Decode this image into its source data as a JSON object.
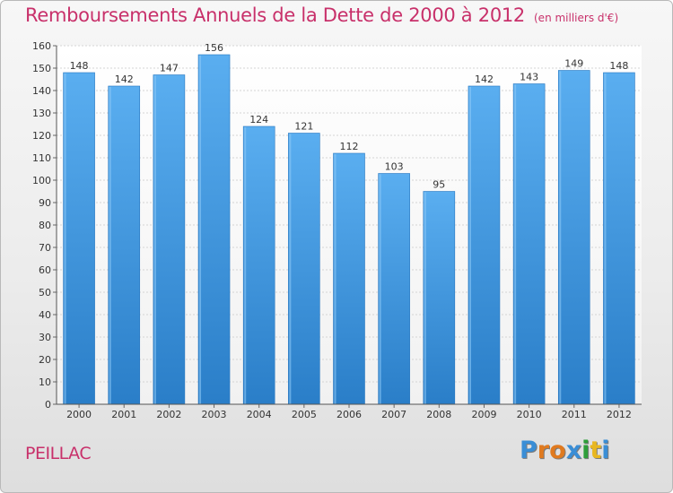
{
  "title": "Remboursements Annuels de la Dette de 2000 à 2012",
  "unit_note": "(en milliers d'€)",
  "commune": "PEILLAC",
  "logo": {
    "letters": [
      "P",
      "r",
      "o",
      "x",
      "i",
      "t",
      "i"
    ],
    "colors": [
      "#3a8ed6",
      "#e07a1f",
      "#e07a1f",
      "#3a8ed6",
      "#2e9e3a",
      "#e8b720",
      "#3a8ed6"
    ]
  },
  "colors": {
    "bar_top": "#5aaef0",
    "bar_bottom": "#2a7ec8",
    "accent": "#c8306a"
  },
  "chart_data": {
    "type": "bar",
    "categories": [
      "2000",
      "2001",
      "2002",
      "2003",
      "2004",
      "2005",
      "2006",
      "2007",
      "2008",
      "2009",
      "2010",
      "2011",
      "2012"
    ],
    "values": [
      148,
      142,
      147,
      156,
      124,
      121,
      112,
      103,
      95,
      142,
      143,
      149,
      148
    ],
    "ylim": [
      0,
      160
    ],
    "yticks": [
      0,
      10,
      20,
      30,
      40,
      50,
      60,
      70,
      80,
      90,
      100,
      110,
      120,
      130,
      140,
      150,
      160
    ],
    "grid": true,
    "xlabel": "",
    "ylabel": ""
  }
}
